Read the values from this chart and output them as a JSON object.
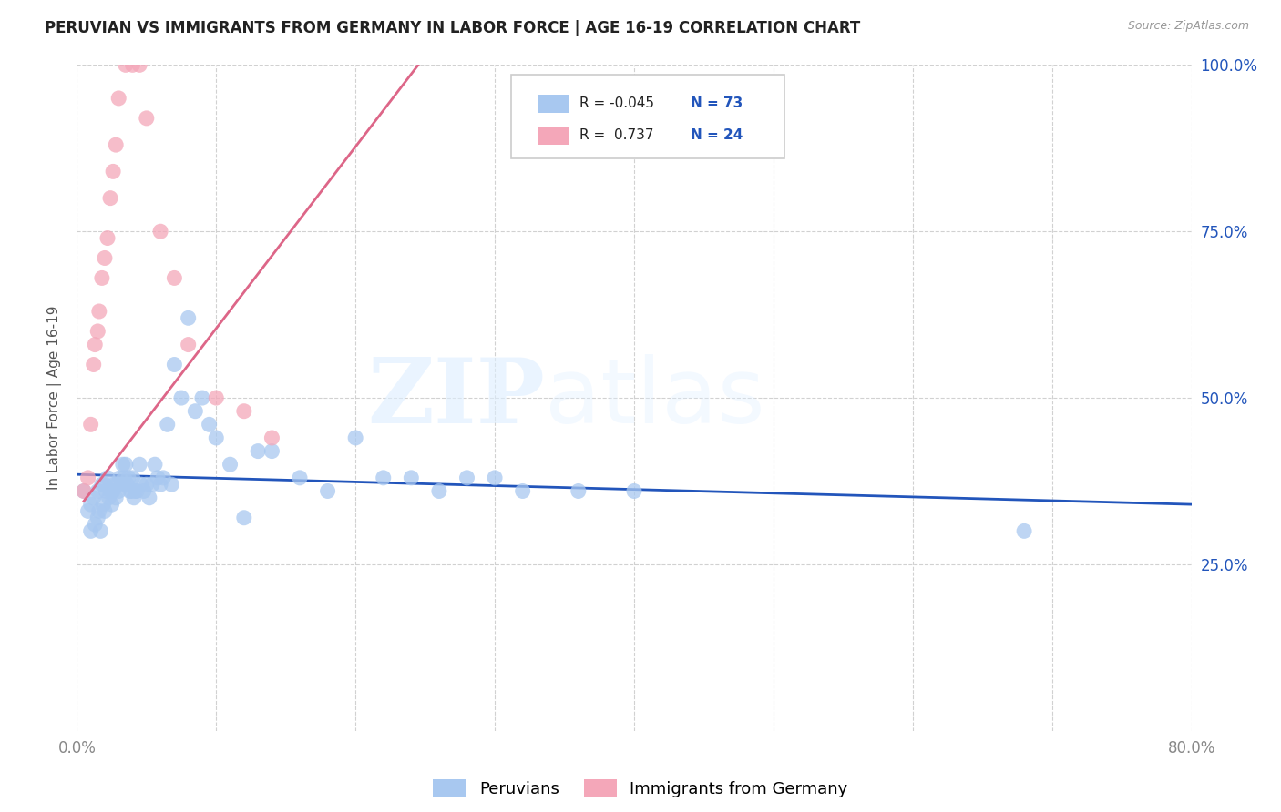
{
  "title": "PERUVIAN VS IMMIGRANTS FROM GERMANY IN LABOR FORCE | AGE 16-19 CORRELATION CHART",
  "source": "Source: ZipAtlas.com",
  "ylabel": "In Labor Force | Age 16-19",
  "x_min": 0.0,
  "x_max": 0.8,
  "y_min": 0.0,
  "y_max": 1.0,
  "x_ticks": [
    0.0,
    0.1,
    0.2,
    0.3,
    0.4,
    0.5,
    0.6,
    0.7,
    0.8
  ],
  "x_tick_labels": [
    "0.0%",
    "",
    "",
    "",
    "",
    "",
    "",
    "",
    "80.0%"
  ],
  "y_ticks": [
    0.25,
    0.5,
    0.75,
    1.0
  ],
  "y_tick_labels": [
    "25.0%",
    "50.0%",
    "75.0%",
    "100.0%"
  ],
  "legend_labels": [
    "Peruvians",
    "Immigrants from Germany"
  ],
  "blue_R": "-0.045",
  "blue_N": "73",
  "pink_R": "0.737",
  "pink_N": "24",
  "blue_color": "#a8c8f0",
  "pink_color": "#f4a7b9",
  "blue_line_color": "#2255bb",
  "pink_line_color": "#dd6688",
  "watermark_zip": "ZIP",
  "watermark_atlas": "atlas",
  "blue_scatter_x": [
    0.005,
    0.008,
    0.01,
    0.01,
    0.012,
    0.013,
    0.015,
    0.015,
    0.016,
    0.017,
    0.018,
    0.019,
    0.02,
    0.02,
    0.021,
    0.022,
    0.023,
    0.024,
    0.025,
    0.025,
    0.026,
    0.027,
    0.028,
    0.029,
    0.03,
    0.031,
    0.032,
    0.033,
    0.034,
    0.035,
    0.036,
    0.037,
    0.038,
    0.039,
    0.04,
    0.041,
    0.042,
    0.043,
    0.045,
    0.046,
    0.048,
    0.05,
    0.052,
    0.054,
    0.056,
    0.058,
    0.06,
    0.062,
    0.065,
    0.068,
    0.07,
    0.075,
    0.08,
    0.085,
    0.09,
    0.095,
    0.1,
    0.11,
    0.12,
    0.13,
    0.14,
    0.16,
    0.18,
    0.2,
    0.22,
    0.24,
    0.26,
    0.28,
    0.3,
    0.32,
    0.36,
    0.4,
    0.68
  ],
  "blue_scatter_y": [
    0.36,
    0.33,
    0.34,
    0.3,
    0.35,
    0.31,
    0.36,
    0.32,
    0.33,
    0.3,
    0.37,
    0.34,
    0.37,
    0.33,
    0.36,
    0.38,
    0.35,
    0.36,
    0.34,
    0.36,
    0.36,
    0.37,
    0.35,
    0.37,
    0.36,
    0.38,
    0.37,
    0.4,
    0.38,
    0.4,
    0.37,
    0.38,
    0.36,
    0.36,
    0.38,
    0.35,
    0.36,
    0.36,
    0.4,
    0.37,
    0.36,
    0.37,
    0.35,
    0.37,
    0.4,
    0.38,
    0.37,
    0.38,
    0.46,
    0.37,
    0.55,
    0.5,
    0.62,
    0.48,
    0.5,
    0.46,
    0.44,
    0.4,
    0.32,
    0.42,
    0.42,
    0.38,
    0.36,
    0.44,
    0.38,
    0.38,
    0.36,
    0.38,
    0.38,
    0.36,
    0.36,
    0.36,
    0.3
  ],
  "pink_scatter_x": [
    0.005,
    0.008,
    0.01,
    0.012,
    0.013,
    0.015,
    0.016,
    0.018,
    0.02,
    0.022,
    0.024,
    0.026,
    0.028,
    0.03,
    0.035,
    0.04,
    0.045,
    0.05,
    0.06,
    0.07,
    0.08,
    0.1,
    0.12,
    0.14
  ],
  "pink_scatter_y": [
    0.36,
    0.38,
    0.46,
    0.55,
    0.58,
    0.6,
    0.63,
    0.68,
    0.71,
    0.74,
    0.8,
    0.84,
    0.88,
    0.95,
    1.0,
    1.0,
    1.0,
    0.92,
    0.75,
    0.68,
    0.58,
    0.5,
    0.48,
    0.44
  ],
  "blue_line_x": [
    0.0,
    0.8
  ],
  "blue_line_y": [
    0.385,
    0.34
  ],
  "pink_line_x": [
    0.005,
    0.245
  ],
  "pink_line_y": [
    0.345,
    1.0
  ]
}
